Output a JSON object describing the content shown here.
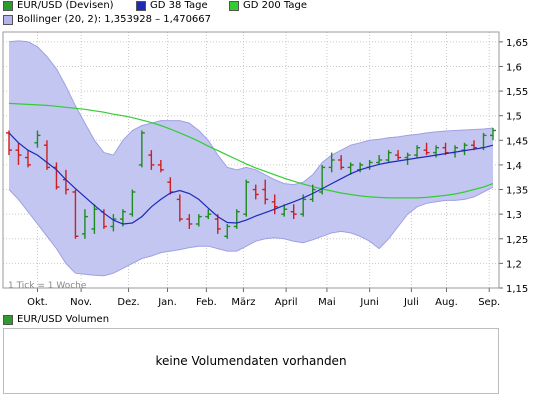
{
  "legend": {
    "items": [
      {
        "label": "EUR/USD (Devisen)",
        "color": "#2e9b2e"
      },
      {
        "label": "GD 38 Tage",
        "color": "#1d2ab8"
      },
      {
        "label": "GD 200 Tage",
        "color": "#33cc33"
      },
      {
        "label": "Bollinger (20, 2): 1,353928 – 1,470667",
        "color": "#b4b4ec"
      }
    ]
  },
  "tick_note": "1 Tick = 1 Woche",
  "volume": {
    "legend_label": "EUR/USD Volumen",
    "legend_color": "#2e9b2e",
    "empty_text": "keine Volumendaten vorhanden"
  },
  "colors": {
    "up": "#1f8a1f",
    "down": "#cc1f1f",
    "band_fill": "#c4c6f2",
    "band_edge": "#9ea0e2",
    "gd38": "#1d2ab8",
    "gd200": "#33cc33",
    "grid": "#c8c8c8"
  },
  "chart_data": {
    "type": "candlestick",
    "x_labels": [
      "Okt.",
      "Nov.",
      "Dez.",
      "Jan.",
      "Feb.",
      "März",
      "April",
      "Mai",
      "Juni",
      "Juli",
      "Aug.",
      "Sep."
    ],
    "y_ticks": [
      "1,15",
      "1,2",
      "1,25",
      "1,3",
      "1,35",
      "1,4",
      "1,45",
      "1,5",
      "1,55",
      "1,6",
      "1,65"
    ],
    "ylim": [
      1.15,
      1.67
    ],
    "grid": true,
    "weeks": 52,
    "month_start_week": [
      3.0,
      7.6,
      12.6,
      16.7,
      20.8,
      24.7,
      29.2,
      33.5,
      38.0,
      42.4,
      46.1,
      50.6
    ],
    "ohlc": [
      [
        1.465,
        1.47,
        1.42,
        1.43
      ],
      [
        1.43,
        1.445,
        1.4,
        1.42
      ],
      [
        1.415,
        1.43,
        1.395,
        1.4
      ],
      [
        1.445,
        1.47,
        1.435,
        1.46
      ],
      [
        1.44,
        1.45,
        1.39,
        1.395
      ],
      [
        1.395,
        1.405,
        1.35,
        1.355
      ],
      [
        1.37,
        1.39,
        1.34,
        1.35
      ],
      [
        1.345,
        1.35,
        1.25,
        1.255
      ],
      [
        1.26,
        1.31,
        1.25,
        1.295
      ],
      [
        1.27,
        1.32,
        1.26,
        1.31
      ],
      [
        1.305,
        1.31,
        1.27,
        1.275
      ],
      [
        1.275,
        1.3,
        1.265,
        1.29
      ],
      [
        1.29,
        1.31,
        1.275,
        1.305
      ],
      [
        1.3,
        1.35,
        1.295,
        1.345
      ],
      [
        1.4,
        1.47,
        1.395,
        1.465
      ],
      [
        1.42,
        1.43,
        1.39,
        1.4
      ],
      [
        1.4,
        1.41,
        1.385,
        1.39
      ],
      [
        1.365,
        1.375,
        1.34,
        1.345
      ],
      [
        1.33,
        1.34,
        1.285,
        1.29
      ],
      [
        1.29,
        1.3,
        1.27,
        1.28
      ],
      [
        1.28,
        1.3,
        1.275,
        1.295
      ],
      [
        1.295,
        1.31,
        1.29,
        1.3
      ],
      [
        1.29,
        1.3,
        1.26,
        1.27
      ],
      [
        1.255,
        1.28,
        1.25,
        1.275
      ],
      [
        1.275,
        1.31,
        1.27,
        1.305
      ],
      [
        1.3,
        1.37,
        1.295,
        1.365
      ],
      [
        1.35,
        1.36,
        1.33,
        1.34
      ],
      [
        1.35,
        1.37,
        1.32,
        1.33
      ],
      [
        1.325,
        1.34,
        1.3,
        1.315
      ],
      [
        1.3,
        1.32,
        1.295,
        1.31
      ],
      [
        1.305,
        1.32,
        1.29,
        1.3
      ],
      [
        1.3,
        1.34,
        1.295,
        1.33
      ],
      [
        1.33,
        1.36,
        1.325,
        1.35
      ],
      [
        1.345,
        1.4,
        1.34,
        1.395
      ],
      [
        1.395,
        1.425,
        1.385,
        1.41
      ],
      [
        1.41,
        1.42,
        1.39,
        1.395
      ],
      [
        1.395,
        1.405,
        1.38,
        1.4
      ],
      [
        1.39,
        1.405,
        1.385,
        1.4
      ],
      [
        1.395,
        1.41,
        1.39,
        1.405
      ],
      [
        1.405,
        1.42,
        1.4,
        1.41
      ],
      [
        1.41,
        1.43,
        1.405,
        1.425
      ],
      [
        1.42,
        1.43,
        1.41,
        1.415
      ],
      [
        1.415,
        1.425,
        1.4,
        1.42
      ],
      [
        1.42,
        1.44,
        1.415,
        1.435
      ],
      [
        1.43,
        1.445,
        1.42,
        1.425
      ],
      [
        1.425,
        1.44,
        1.415,
        1.435
      ],
      [
        1.435,
        1.445,
        1.42,
        1.425
      ],
      [
        1.425,
        1.44,
        1.415,
        1.435
      ],
      [
        1.43,
        1.445,
        1.42,
        1.44
      ],
      [
        1.44,
        1.45,
        1.43,
        1.435
      ],
      [
        1.435,
        1.465,
        1.43,
        1.46
      ],
      [
        1.46,
        1.475,
        1.45,
        1.47
      ]
    ],
    "gd38": [
      1.465,
      1.445,
      1.43,
      1.42,
      1.405,
      1.39,
      1.37,
      1.352,
      1.335,
      1.318,
      1.302,
      1.288,
      1.28,
      1.282,
      1.295,
      1.315,
      1.33,
      1.343,
      1.348,
      1.342,
      1.33,
      1.312,
      1.295,
      1.283,
      1.282,
      1.288,
      1.296,
      1.303,
      1.31,
      1.318,
      1.325,
      1.333,
      1.342,
      1.352,
      1.362,
      1.372,
      1.382,
      1.39,
      1.396,
      1.401,
      1.405,
      1.408,
      1.411,
      1.414,
      1.417,
      1.42,
      1.423,
      1.426,
      1.429,
      1.432,
      1.435,
      1.44
    ],
    "gd200": [
      1.525,
      1.524,
      1.523,
      1.522,
      1.521,
      1.519,
      1.517,
      1.515,
      1.513,
      1.51,
      1.507,
      1.503,
      1.5,
      1.496,
      1.491,
      1.486,
      1.48,
      1.473,
      1.465,
      1.457,
      1.448,
      1.438,
      1.429,
      1.42,
      1.411,
      1.402,
      1.394,
      1.387,
      1.38,
      1.373,
      1.367,
      1.361,
      1.356,
      1.351,
      1.347,
      1.343,
      1.34,
      1.337,
      1.335,
      1.334,
      1.333,
      1.333,
      1.333,
      1.333,
      1.334,
      1.336,
      1.338,
      1.341,
      1.345,
      1.35,
      1.355,
      1.362
    ],
    "bollinger_upper": [
      1.65,
      1.652,
      1.65,
      1.64,
      1.62,
      1.595,
      1.56,
      1.52,
      1.485,
      1.45,
      1.425,
      1.42,
      1.45,
      1.47,
      1.48,
      1.485,
      1.49,
      1.49,
      1.49,
      1.485,
      1.47,
      1.45,
      1.42,
      1.395,
      1.39,
      1.395,
      1.39,
      1.38,
      1.37,
      1.362,
      1.36,
      1.365,
      1.38,
      1.405,
      1.42,
      1.43,
      1.44,
      1.445,
      1.45,
      1.452,
      1.455,
      1.457,
      1.46,
      1.462,
      1.465,
      1.467,
      1.469,
      1.47,
      1.471,
      1.472,
      1.473,
      1.475
    ],
    "bollinger_lower": [
      1.35,
      1.33,
      1.305,
      1.28,
      1.255,
      1.23,
      1.2,
      1.18,
      1.178,
      1.176,
      1.175,
      1.18,
      1.19,
      1.2,
      1.21,
      1.215,
      1.222,
      1.225,
      1.228,
      1.232,
      1.235,
      1.235,
      1.23,
      1.225,
      1.225,
      1.235,
      1.245,
      1.25,
      1.252,
      1.25,
      1.245,
      1.242,
      1.248,
      1.255,
      1.262,
      1.265,
      1.262,
      1.255,
      1.245,
      1.23,
      1.25,
      1.275,
      1.3,
      1.315,
      1.322,
      1.325,
      1.328,
      1.328,
      1.33,
      1.335,
      1.345,
      1.355
    ]
  }
}
